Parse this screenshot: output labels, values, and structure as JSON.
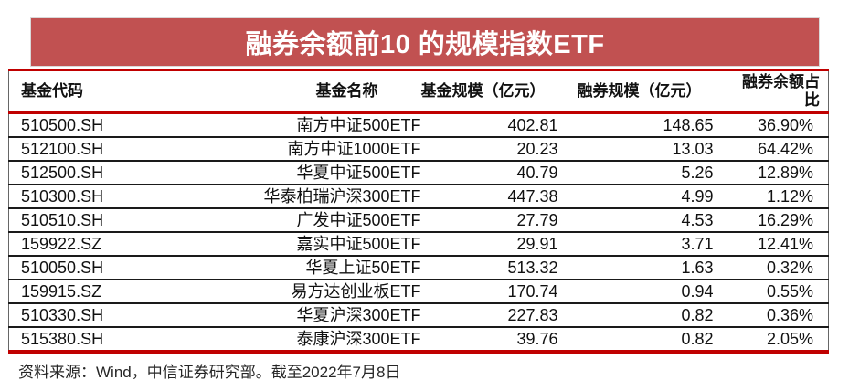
{
  "banner": {
    "title": "融券余额前10 的规模指数ETF"
  },
  "table": {
    "headers": {
      "fund_code": "基金代码",
      "fund_name": "基金名称",
      "fund_size": "基金规模（亿元）",
      "lending_size": "融券规模（亿元）",
      "lending_balance_ratio": "融券余额占比"
    },
    "rows": [
      [
        "510500.SH",
        "南方中证500ETF",
        "402.81",
        "148.65",
        "36.90%"
      ],
      [
        "512100.SH",
        "南方中证1000ETF",
        "20.23",
        "13.03",
        "64.42%"
      ],
      [
        "512500.SH",
        "华夏中证500ETF",
        "40.79",
        "5.26",
        "12.89%"
      ],
      [
        "510300.SH",
        "华泰柏瑞沪深300ETF",
        "447.38",
        "4.99",
        "1.12%"
      ],
      [
        "510510.SH",
        "广发中证500ETF",
        "27.79",
        "4.53",
        "16.29%"
      ],
      [
        "159922.SZ",
        "嘉实中证500ETF",
        "29.91",
        "3.71",
        "12.41%"
      ],
      [
        "510050.SH",
        "华夏上证50ETF",
        "513.32",
        "1.63",
        "0.32%"
      ],
      [
        "159915.SZ",
        "易方达创业板ETF",
        "170.74",
        "0.94",
        "0.55%"
      ],
      [
        "510330.SH",
        "华夏沪深300ETF",
        "227.83",
        "0.82",
        "0.36%"
      ],
      [
        "515380.SH",
        "泰康沪深300ETF",
        "39.76",
        "0.82",
        "2.05%"
      ]
    ]
  },
  "footer": {
    "source_note": "资料来源：Wind，中信证券研究部。截至2022年7月8日"
  },
  "colors": {
    "banner_bg": "#C15151",
    "banner_border": "#D9D9D9",
    "accent_red": "#C00000",
    "row_divider": "#1A1A1A",
    "table_side_border": "#666666",
    "text": "#111111",
    "footer_text": "#262626"
  }
}
